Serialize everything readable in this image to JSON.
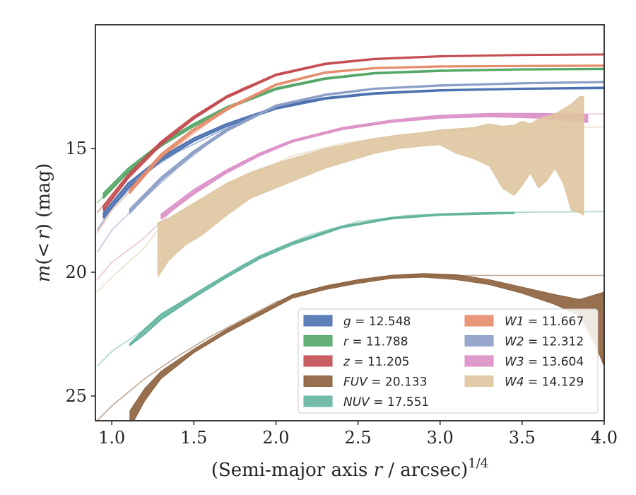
{
  "chart_data": {
    "type": "line",
    "title": "",
    "xlabel": "(Semi-major axis r / arcsec)^{1/4}",
    "xlabel_parts": {
      "prefix": "(Semi-major axis ",
      "var": "r",
      "mid": " / arcsec)",
      "exp": "1/4"
    },
    "ylabel": "m(<r) (mag)",
    "ylabel_parts": {
      "m": "m",
      "open": "(",
      "lt": "<",
      "r": "r",
      "close": ")",
      "unit": " (mag)"
    },
    "xlim": [
      0.9,
      4.0
    ],
    "ylim": [
      26.0,
      10.0
    ],
    "y_inverted": true,
    "x_ticks": [
      "1.0",
      "1.5",
      "2.0",
      "2.5",
      "3.0",
      "3.5",
      "4.0"
    ],
    "y_ticks": [
      "15",
      "20",
      "25"
    ],
    "grid": false,
    "legend_position": "lower-right",
    "series": [
      {
        "name": "g = 12.548",
        "var": "g",
        "value": "12.548",
        "color": "#4c72b0",
        "model": [
          [
            0.91,
            18.3
          ],
          [
            1.0,
            17.4
          ],
          [
            1.2,
            16.0
          ],
          [
            1.4,
            15.15
          ],
          [
            1.6,
            14.5
          ],
          [
            1.8,
            13.85
          ],
          [
            2.0,
            13.4
          ],
          [
            2.2,
            13.05
          ],
          [
            2.5,
            12.8
          ],
          [
            2.8,
            12.7
          ],
          [
            3.2,
            12.63
          ],
          [
            3.6,
            12.58
          ],
          [
            4.0,
            12.55
          ]
        ],
        "band": [
          [
            0.95,
            17.8,
            17.6
          ],
          [
            1.1,
            16.6,
            16.4
          ],
          [
            1.3,
            15.5,
            15.35
          ],
          [
            1.5,
            14.7,
            14.58
          ],
          [
            1.7,
            14.1,
            14.0
          ],
          [
            2.0,
            13.4,
            13.32
          ],
          [
            2.3,
            13.0,
            12.95
          ],
          [
            2.6,
            12.8,
            12.75
          ],
          [
            3.0,
            12.67,
            12.63
          ],
          [
            3.5,
            12.6,
            12.57
          ],
          [
            4.0,
            12.57,
            12.53
          ]
        ]
      },
      {
        "name": "r = 11.788",
        "var": "r",
        "value": "11.788",
        "color": "#55a868",
        "model": [
          [
            0.91,
            17.2
          ],
          [
            1.0,
            16.6
          ],
          [
            1.2,
            15.4
          ],
          [
            1.4,
            14.45
          ],
          [
            1.6,
            13.75
          ],
          [
            1.8,
            13.1
          ],
          [
            2.0,
            12.6
          ],
          [
            2.2,
            12.3
          ],
          [
            2.5,
            12.0
          ],
          [
            2.8,
            11.9
          ],
          [
            3.2,
            11.84
          ],
          [
            3.6,
            11.8
          ],
          [
            4.0,
            11.79
          ]
        ],
        "band": [
          [
            0.95,
            17.0,
            16.8
          ],
          [
            1.1,
            15.95,
            15.8
          ],
          [
            1.3,
            14.9,
            14.78
          ],
          [
            1.5,
            14.1,
            14.0
          ],
          [
            1.7,
            13.4,
            13.32
          ],
          [
            2.0,
            12.62,
            12.56
          ],
          [
            2.3,
            12.2,
            12.15
          ],
          [
            2.6,
            11.98,
            11.94
          ],
          [
            3.0,
            11.88,
            11.84
          ],
          [
            3.5,
            11.82,
            11.79
          ],
          [
            4.0,
            11.8,
            11.77
          ]
        ]
      },
      {
        "name": "z = 11.205",
        "var": "z",
        "value": "11.205",
        "color": "#c44e52",
        "model": [
          [
            0.91,
            17.6
          ],
          [
            1.0,
            16.9
          ],
          [
            1.2,
            15.4
          ],
          [
            1.4,
            14.2
          ],
          [
            1.6,
            13.3
          ],
          [
            1.8,
            12.55
          ],
          [
            2.0,
            12.05
          ],
          [
            2.2,
            11.7
          ],
          [
            2.5,
            11.45
          ],
          [
            2.8,
            11.33
          ],
          [
            3.2,
            11.26
          ],
          [
            3.6,
            11.22
          ],
          [
            4.0,
            11.2
          ]
        ],
        "band": [
          [
            0.95,
            17.5,
            17.3
          ],
          [
            1.1,
            16.2,
            16.05
          ],
          [
            1.3,
            14.85,
            14.72
          ],
          [
            1.5,
            13.8,
            13.7
          ],
          [
            1.7,
            12.95,
            12.88
          ],
          [
            2.0,
            12.05,
            12.0
          ],
          [
            2.3,
            11.6,
            11.56
          ],
          [
            2.6,
            11.4,
            11.37
          ],
          [
            3.0,
            11.29,
            11.26
          ],
          [
            3.5,
            11.23,
            11.21
          ],
          [
            4.0,
            11.21,
            11.19
          ]
        ]
      },
      {
        "name": "FUV = 20.133",
        "var": "FUV",
        "value": "20.133",
        "color": "#8c613c",
        "model": [
          [
            0.91,
            26.0
          ],
          [
            1.0,
            25.4
          ],
          [
            1.2,
            24.3
          ],
          [
            1.4,
            23.4
          ],
          [
            1.6,
            22.6
          ],
          [
            1.8,
            21.9
          ],
          [
            2.0,
            21.2
          ],
          [
            2.2,
            20.75
          ],
          [
            2.5,
            20.35
          ],
          [
            2.8,
            20.15
          ],
          [
            3.2,
            20.13
          ],
          [
            3.6,
            20.13
          ],
          [
            4.0,
            20.13
          ]
        ],
        "band": [
          [
            1.11,
            25.6,
            26.3
          ],
          [
            1.2,
            24.7,
            25.2
          ],
          [
            1.3,
            24.0,
            24.3
          ],
          [
            1.5,
            23.1,
            23.25
          ],
          [
            1.7,
            22.3,
            22.45
          ],
          [
            1.9,
            21.6,
            21.75
          ],
          [
            2.1,
            20.9,
            21.05
          ],
          [
            2.3,
            20.55,
            20.7
          ],
          [
            2.5,
            20.3,
            20.45
          ],
          [
            2.7,
            20.12,
            20.25
          ],
          [
            2.9,
            20.05,
            20.2
          ],
          [
            3.1,
            20.1,
            20.3
          ],
          [
            3.3,
            20.3,
            20.5
          ],
          [
            3.5,
            20.6,
            20.85
          ],
          [
            3.7,
            20.9,
            21.3
          ],
          [
            3.85,
            21.1,
            21.75
          ],
          [
            3.95,
            20.9,
            23.0
          ],
          [
            4.0,
            20.8,
            23.8
          ]
        ]
      },
      {
        "name": "NUV = 17.551",
        "var": "NUV",
        "value": "17.551",
        "color": "#64b5a0",
        "model": [
          [
            0.91,
            23.8
          ],
          [
            1.0,
            23.2
          ],
          [
            1.2,
            22.3
          ],
          [
            1.4,
            21.4
          ],
          [
            1.6,
            20.5
          ],
          [
            1.8,
            19.7
          ],
          [
            2.0,
            19.05
          ],
          [
            2.2,
            18.5
          ],
          [
            2.5,
            17.95
          ],
          [
            2.8,
            17.7
          ],
          [
            3.2,
            17.6
          ],
          [
            3.6,
            17.57
          ],
          [
            4.0,
            17.55
          ]
        ],
        "band": [
          [
            1.11,
            22.9,
            22.95
          ],
          [
            1.2,
            22.3,
            22.5
          ],
          [
            1.3,
            21.7,
            21.9
          ],
          [
            1.5,
            20.9,
            21.02
          ],
          [
            1.7,
            20.1,
            20.2
          ],
          [
            1.9,
            19.35,
            19.45
          ],
          [
            2.1,
            18.8,
            18.88
          ],
          [
            2.4,
            18.15,
            18.2
          ],
          [
            2.7,
            17.8,
            17.84
          ],
          [
            3.0,
            17.65,
            17.69
          ],
          [
            3.3,
            17.6,
            17.64
          ],
          [
            3.45,
            17.59,
            17.62
          ]
        ]
      },
      {
        "name": "W1 = 11.667",
        "var": "W1",
        "value": "11.667",
        "color": "#e58d6c",
        "model": [
          [
            0.91,
            18.4
          ],
          [
            1.0,
            17.5
          ],
          [
            1.2,
            16.1
          ],
          [
            1.4,
            14.9
          ],
          [
            1.6,
            13.9
          ],
          [
            1.8,
            13.05
          ],
          [
            2.0,
            12.45
          ],
          [
            2.2,
            12.05
          ],
          [
            2.5,
            11.8
          ],
          [
            2.8,
            11.72
          ],
          [
            3.2,
            11.69
          ],
          [
            3.6,
            11.67
          ],
          [
            4.0,
            11.66
          ]
        ],
        "band": [
          [
            1.11,
            16.8,
            16.65
          ],
          [
            1.3,
            15.35,
            15.22
          ],
          [
            1.5,
            14.3,
            14.2
          ],
          [
            1.7,
            13.45,
            13.37
          ],
          [
            2.0,
            12.45,
            12.4
          ],
          [
            2.3,
            11.95,
            11.91
          ],
          [
            2.6,
            11.77,
            11.74
          ],
          [
            3.0,
            11.7,
            11.67
          ],
          [
            3.5,
            11.68,
            11.65
          ],
          [
            4.0,
            11.67,
            11.64
          ]
        ]
      },
      {
        "name": "W2 = 12.312",
        "var": "W2",
        "value": "12.312",
        "color": "#8c9fc6",
        "model": [
          [
            0.91,
            19.2
          ],
          [
            1.0,
            18.3
          ],
          [
            1.2,
            17.0
          ],
          [
            1.4,
            15.8
          ],
          [
            1.6,
            14.75
          ],
          [
            1.8,
            13.9
          ],
          [
            2.0,
            13.3
          ],
          [
            2.2,
            12.95
          ],
          [
            2.5,
            12.65
          ],
          [
            2.8,
            12.5
          ],
          [
            3.2,
            12.42
          ],
          [
            3.6,
            12.35
          ],
          [
            4.0,
            12.31
          ]
        ],
        "band": [
          [
            1.11,
            17.6,
            17.45
          ],
          [
            1.3,
            16.3,
            16.17
          ],
          [
            1.5,
            15.2,
            15.1
          ],
          [
            1.7,
            14.3,
            14.22
          ],
          [
            2.0,
            13.3,
            13.25
          ],
          [
            2.3,
            12.85,
            12.81
          ],
          [
            2.6,
            12.6,
            12.57
          ],
          [
            3.0,
            12.47,
            12.44
          ],
          [
            3.5,
            12.38,
            12.35
          ],
          [
            4.0,
            12.33,
            12.3
          ]
        ]
      },
      {
        "name": "W3 = 13.604",
        "var": "W3",
        "value": "13.604",
        "color": "#dc8fc6",
        "model": [
          [
            0.91,
            20.3
          ],
          [
            1.0,
            19.6
          ],
          [
            1.2,
            18.6
          ],
          [
            1.4,
            17.3
          ],
          [
            1.6,
            16.3
          ],
          [
            1.8,
            15.55
          ],
          [
            2.0,
            14.95
          ],
          [
            2.2,
            14.5
          ],
          [
            2.5,
            14.1
          ],
          [
            2.8,
            13.85
          ],
          [
            3.2,
            13.7
          ],
          [
            3.6,
            13.63
          ],
          [
            4.0,
            13.6
          ]
        ],
        "band": [
          [
            1.3,
            17.85,
            17.65
          ],
          [
            1.5,
            16.85,
            16.65
          ],
          [
            1.7,
            16.0,
            15.85
          ],
          [
            1.9,
            15.3,
            15.18
          ],
          [
            2.1,
            14.75,
            14.65
          ],
          [
            2.4,
            14.25,
            14.15
          ],
          [
            2.7,
            13.95,
            13.85
          ],
          [
            3.0,
            13.78,
            13.65
          ],
          [
            3.3,
            13.72,
            13.58
          ],
          [
            3.6,
            13.78,
            13.58
          ],
          [
            3.9,
            13.95,
            13.62
          ]
        ]
      },
      {
        "name": "W4 = 14.129",
        "var": "W4",
        "value": "14.129",
        "color": "#dec59f",
        "model": [
          [
            0.91,
            20.8
          ],
          [
            1.0,
            20.2
          ],
          [
            1.2,
            19.0
          ],
          [
            1.28,
            18.3
          ],
          [
            1.5,
            17.4
          ],
          [
            1.8,
            16.2
          ],
          [
            2.1,
            15.3
          ],
          [
            2.4,
            14.8
          ],
          [
            2.7,
            14.5
          ],
          [
            3.0,
            14.3
          ],
          [
            3.4,
            14.2
          ],
          [
            3.7,
            14.15
          ],
          [
            4.0,
            14.13
          ]
        ],
        "band": [
          [
            1.28,
            18.0,
            20.2
          ],
          [
            1.35,
            17.8,
            19.5
          ],
          [
            1.45,
            17.4,
            18.9
          ],
          [
            1.55,
            17.0,
            18.5
          ],
          [
            1.7,
            16.4,
            17.7
          ],
          [
            1.85,
            15.95,
            17.0
          ],
          [
            2.0,
            15.6,
            16.6
          ],
          [
            2.15,
            15.3,
            16.2
          ],
          [
            2.3,
            15.0,
            15.8
          ],
          [
            2.45,
            14.8,
            15.5
          ],
          [
            2.6,
            14.6,
            15.2
          ],
          [
            2.75,
            14.45,
            15.0
          ],
          [
            2.9,
            14.35,
            14.9
          ],
          [
            3.0,
            14.25,
            14.85
          ],
          [
            3.1,
            14.2,
            15.2
          ],
          [
            3.2,
            14.15,
            15.4
          ],
          [
            3.3,
            14.0,
            15.7
          ],
          [
            3.38,
            14.1,
            16.6
          ],
          [
            3.45,
            14.05,
            16.9
          ],
          [
            3.5,
            13.9,
            16.5
          ],
          [
            3.55,
            14.0,
            16.0
          ],
          [
            3.6,
            13.8,
            16.6
          ],
          [
            3.65,
            13.7,
            16.3
          ],
          [
            3.7,
            13.6,
            15.8
          ],
          [
            3.75,
            13.4,
            16.4
          ],
          [
            3.8,
            13.2,
            17.5
          ],
          [
            3.85,
            12.9,
            17.6
          ],
          [
            3.875,
            12.9,
            17.7
          ]
        ]
      }
    ]
  }
}
